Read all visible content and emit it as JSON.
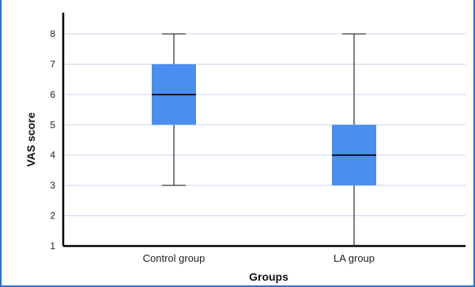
{
  "chart_data": {
    "type": "box",
    "categories": [
      "Control group",
      "LA group"
    ],
    "boxes": [
      {
        "min": 3,
        "q1": 5,
        "median": 6,
        "q3": 7,
        "max": 8
      },
      {
        "min": 1,
        "q1": 3,
        "median": 4,
        "q3": 5,
        "max": 8
      }
    ],
    "xlabel": "Groups",
    "ylabel": "VAS score",
    "ylim": [
      1,
      8
    ],
    "yticks": [
      "1",
      "2",
      "3",
      "4",
      "5",
      "6",
      "7",
      "8"
    ],
    "grid": true,
    "colors": {
      "box": "#4a8ef0",
      "grid": "#c8d3ea",
      "axis": "#000000",
      "frame": "#2f6fd1"
    }
  }
}
